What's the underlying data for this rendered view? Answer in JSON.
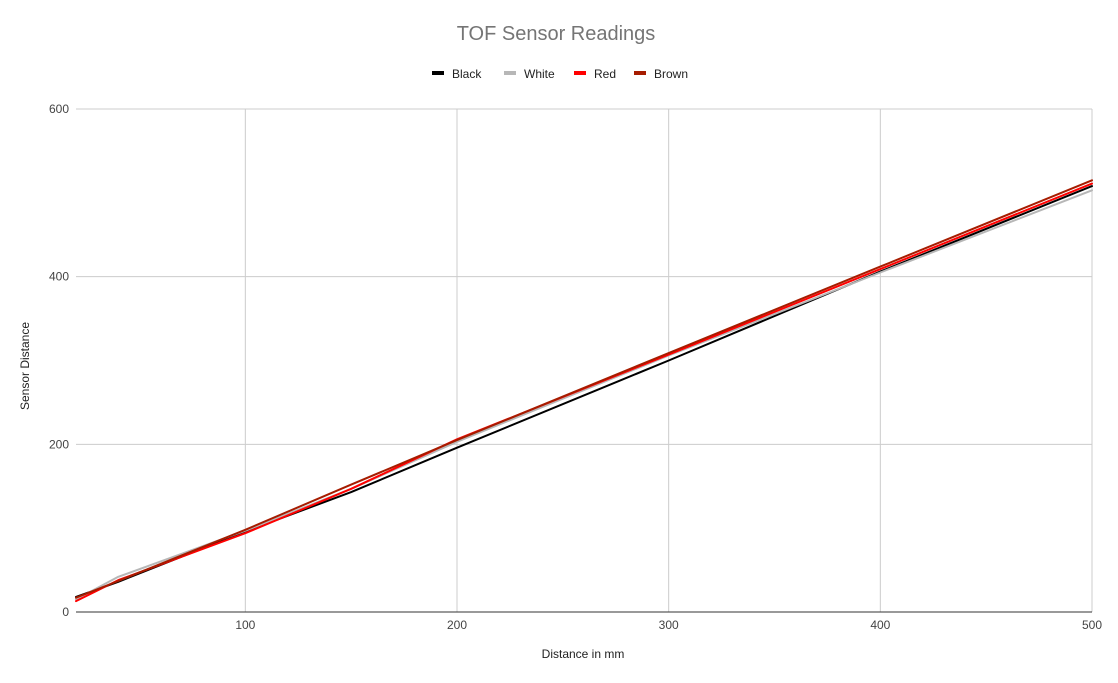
{
  "chart_data": {
    "type": "line",
    "title": "TOF Sensor Readings",
    "xlabel": "Distance in mm",
    "ylabel": "Sensor Distance",
    "xlim": [
      20,
      500
    ],
    "ylim": [
      0,
      600
    ],
    "x_ticks": [
      100,
      200,
      300,
      400,
      500
    ],
    "y_ticks": [
      0,
      200,
      400,
      600
    ],
    "grid": true,
    "legend_position": "top",
    "series": [
      {
        "name": "Black",
        "color": "#000000",
        "x": [
          20,
          40,
          100,
          150,
          200,
          300,
          400,
          500
        ],
        "y": [
          18,
          36,
          96,
          143,
          196,
          300,
          406,
          508
        ]
      },
      {
        "name": "White",
        "color": "#b7b7b7",
        "x": [
          20,
          40,
          100,
          150,
          200,
          300,
          400,
          500
        ],
        "y": [
          15,
          42,
          97,
          147,
          203,
          306,
          405,
          503
        ]
      },
      {
        "name": "Red",
        "color": "#ff0000",
        "x": [
          20,
          40,
          100,
          150,
          200,
          300,
          400,
          500
        ],
        "y": [
          13,
          38,
          94,
          147,
          206,
          307,
          409,
          511
        ]
      },
      {
        "name": "Brown",
        "color": "#a61c00",
        "x": [
          20,
          40,
          100,
          150,
          200,
          300,
          400,
          500
        ],
        "y": [
          17,
          37,
          98,
          152,
          205,
          309,
          412,
          515
        ]
      }
    ]
  }
}
